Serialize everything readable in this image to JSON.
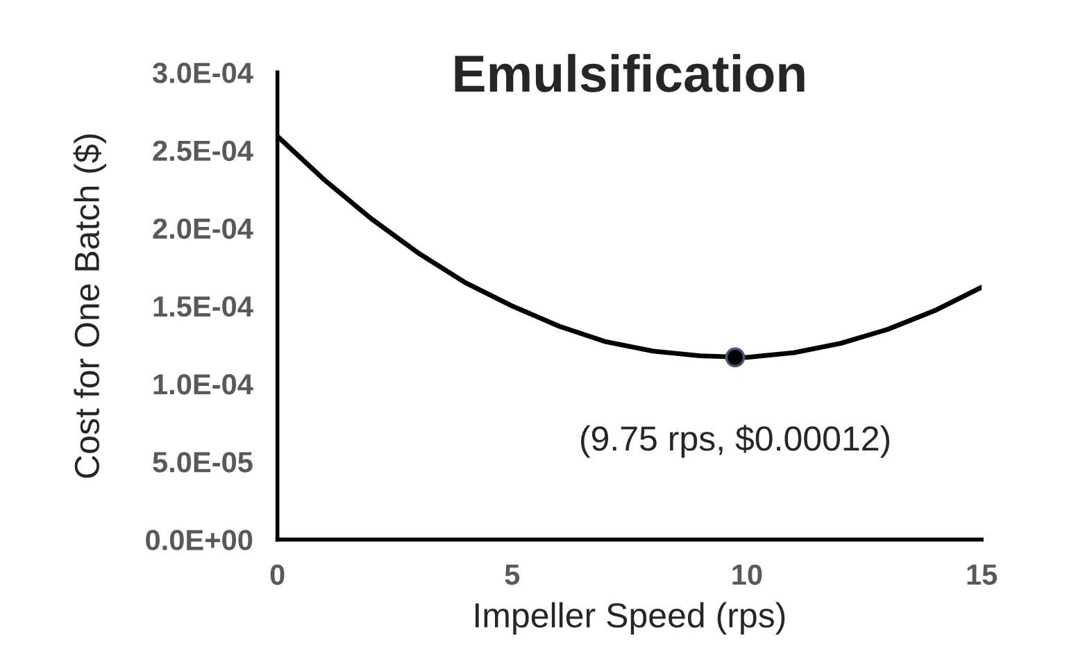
{
  "chart_data": {
    "type": "line",
    "title": "Emulsification",
    "xlabel": "Impeller Speed (rps)",
    "ylabel": "Cost for One Batch ($)",
    "xlim": [
      0,
      15
    ],
    "xticks": [
      0,
      5,
      10,
      15
    ],
    "ylim": [
      0,
      0.0003
    ],
    "yticks": [
      {
        "value": 0,
        "label": "0.0E+00"
      },
      {
        "value": 5e-05,
        "label": "5.0E-05"
      },
      {
        "value": 0.0001,
        "label": "1.0E-04"
      },
      {
        "value": 0.00015,
        "label": "1.5E-04"
      },
      {
        "value": 0.0002,
        "label": "2.0E-04"
      },
      {
        "value": 0.00025,
        "label": "2.5E-04"
      },
      {
        "value": 0.0003,
        "label": "3.0E-04"
      }
    ],
    "grid": false,
    "legend": false,
    "series": [
      {
        "color": "#000000",
        "marker": "none",
        "x": [
          0,
          1,
          2,
          3,
          4,
          5,
          6,
          7,
          8,
          9,
          10,
          11,
          12,
          13,
          14,
          15
        ],
        "values": [
          0.000259,
          0.000231,
          0.000206,
          0.000184,
          0.000165,
          0.00015,
          0.000137,
          0.000127,
          0.000121,
          0.000118,
          0.000117,
          0.00012,
          0.000126,
          0.000135,
          0.000147,
          0.000162
        ]
      },
      {
        "type": "scatter",
        "color": "#000000",
        "marker": "circle",
        "x": [
          9.75
        ],
        "values": [
          0.000117
        ]
      }
    ],
    "annotations": [
      {
        "text": "(9.75 rps, $0.00012)",
        "x": 9.75,
        "y": 0.000117
      }
    ]
  }
}
